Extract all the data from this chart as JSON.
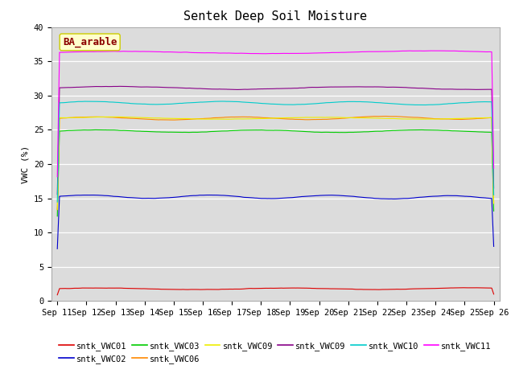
{
  "title": "Sentek Deep Soil Moisture",
  "ylabel": "VWC (%)",
  "ylim": [
    0,
    40
  ],
  "yticks": [
    0,
    5,
    10,
    15,
    20,
    25,
    30,
    35,
    40
  ],
  "background_color": "#dcdcdc",
  "annotation_text": "BA_arable",
  "annotation_box_facecolor": "#ffffcc",
  "annotation_text_color": "#8b0000",
  "annotation_edge_color": "#cccc00",
  "series": [
    {
      "label": "sntk_VWC01",
      "color": "#dd0000",
      "mean": 1.8,
      "amplitude": 0.12,
      "freq": 0.8
    },
    {
      "label": "sntk_VWC02",
      "color": "#0000cc",
      "mean": 15.2,
      "amplitude": 0.25,
      "freq": 1.2
    },
    {
      "label": "sntk_VWC03",
      "color": "#00cc00",
      "mean": 24.8,
      "amplitude": 0.18,
      "freq": 0.9
    },
    {
      "label": "sntk_VWC06",
      "color": "#ff8800",
      "mean": 26.7,
      "amplitude": 0.22,
      "freq": 1.0
    },
    {
      "label": "sntk_VWC09",
      "color": "#eeee00",
      "mean": 26.7,
      "amplitude": 0.15,
      "freq": 0.7
    },
    {
      "label": "sntk_VWC09",
      "color": "#880088",
      "mean": 31.1,
      "amplitude": 0.2,
      "freq": 0.6
    },
    {
      "label": "sntk_VWC10",
      "color": "#00cccc",
      "mean": 28.9,
      "amplitude": 0.22,
      "freq": 1.1
    },
    {
      "label": "sntk_VWC11",
      "color": "#ff00ff",
      "mean": 36.3,
      "amplitude": 0.18,
      "freq": 0.5
    }
  ],
  "xtick_labels": [
    "Sep 11",
    "Sep 12",
    "Sep 13",
    "Sep 14",
    "Sep 15",
    "Sep 16",
    "Sep 17",
    "Sep 18",
    "Sep 19",
    "Sep 20",
    "Sep 21",
    "Sep 22",
    "Sep 23",
    "Sep 24",
    "Sep 25",
    "Sep 26"
  ],
  "n_points": 3000,
  "title_fontsize": 11,
  "axis_label_fontsize": 8,
  "tick_fontsize": 7.5,
  "legend_fontsize": 7.5
}
